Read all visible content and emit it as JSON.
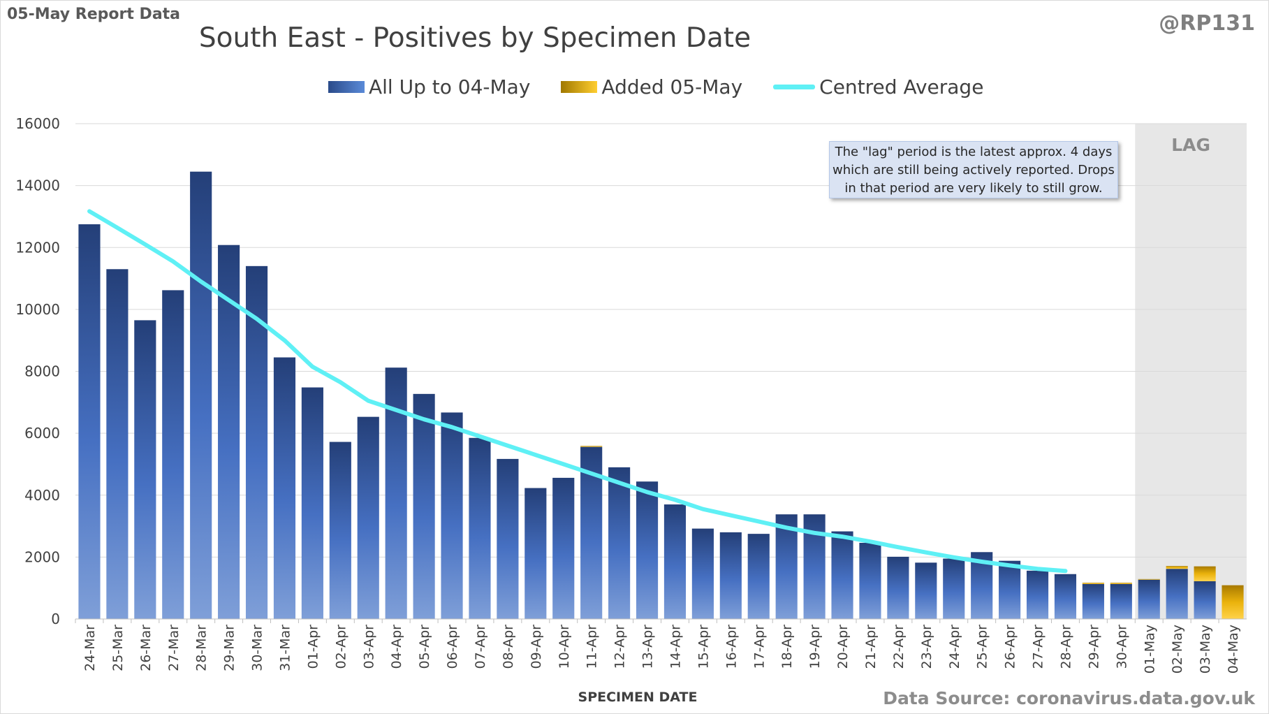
{
  "report_date": "05-May Report Data",
  "handle": "@RP131",
  "source": "Data Source: coronavirus.data.gov.uk",
  "note": "The \"lag\" period is the latest approx. 4 days which are still being actively reported. Drops in that period are very likely to still grow.",
  "lag_label": "LAG",
  "colors": {
    "base": "#3f69b8",
    "added": "#f2b70d",
    "line": "#5ff0f5",
    "lag": "#e7e7e7"
  },
  "chart_data": {
    "type": "bar",
    "title": "South East - Positives by Specimen Date",
    "xlabel": "SPECIMEN DATE",
    "ylabel": "",
    "ylim": [
      0,
      16000
    ],
    "yticks": [
      0,
      2000,
      4000,
      6000,
      8000,
      10000,
      12000,
      14000,
      16000
    ],
    "grid": true,
    "legend": "top-center",
    "categories": [
      "24-Mar",
      "25-Mar",
      "26-Mar",
      "27-Mar",
      "28-Mar",
      "29-Mar",
      "30-Mar",
      "31-Mar",
      "01-Apr",
      "02-Apr",
      "03-Apr",
      "04-Apr",
      "05-Apr",
      "06-Apr",
      "07-Apr",
      "08-Apr",
      "09-Apr",
      "10-Apr",
      "11-Apr",
      "12-Apr",
      "13-Apr",
      "14-Apr",
      "15-Apr",
      "16-Apr",
      "17-Apr",
      "18-Apr",
      "19-Apr",
      "20-Apr",
      "21-Apr",
      "22-Apr",
      "23-Apr",
      "24-Apr",
      "25-Apr",
      "26-Apr",
      "27-Apr",
      "28-Apr",
      "29-Apr",
      "30-Apr",
      "01-May",
      "02-May",
      "03-May",
      "04-May"
    ],
    "lag_start": "01-May",
    "series": [
      {
        "name": "All Up to 04-May",
        "kind": "bar",
        "values": [
          12750,
          11300,
          9650,
          10620,
          14450,
          12080,
          11400,
          8450,
          7480,
          5720,
          6530,
          8120,
          7270,
          6670,
          5850,
          5170,
          4230,
          4560,
          5560,
          4900,
          4440,
          3700,
          2920,
          2800,
          2750,
          3380,
          3380,
          2830,
          2460,
          2010,
          1820,
          1950,
          2160,
          1880,
          1560,
          1450,
          1130,
          1130,
          1270,
          1620,
          1220,
          0
        ]
      },
      {
        "name": "Added 05-May",
        "kind": "bar-stack",
        "values": [
          0,
          0,
          0,
          0,
          0,
          0,
          0,
          0,
          0,
          0,
          0,
          0,
          0,
          0,
          0,
          0,
          0,
          0,
          30,
          0,
          0,
          0,
          0,
          0,
          0,
          0,
          0,
          0,
          0,
          0,
          0,
          0,
          0,
          0,
          0,
          0,
          40,
          40,
          20,
          90,
          480,
          1090
        ]
      },
      {
        "name": "Centred Average",
        "kind": "line",
        "values": [
          13170,
          12640,
          12100,
          11550,
          10900,
          10300,
          9700,
          9000,
          8150,
          7650,
          7050,
          6750,
          6450,
          6200,
          5900,
          5600,
          5300,
          5000,
          4700,
          4400,
          4100,
          3850,
          3550,
          3350,
          3150,
          2950,
          2780,
          2660,
          2500,
          2320,
          2150,
          1990,
          1850,
          1730,
          1620,
          1550,
          null,
          null,
          null,
          null,
          null,
          null
        ]
      }
    ]
  }
}
